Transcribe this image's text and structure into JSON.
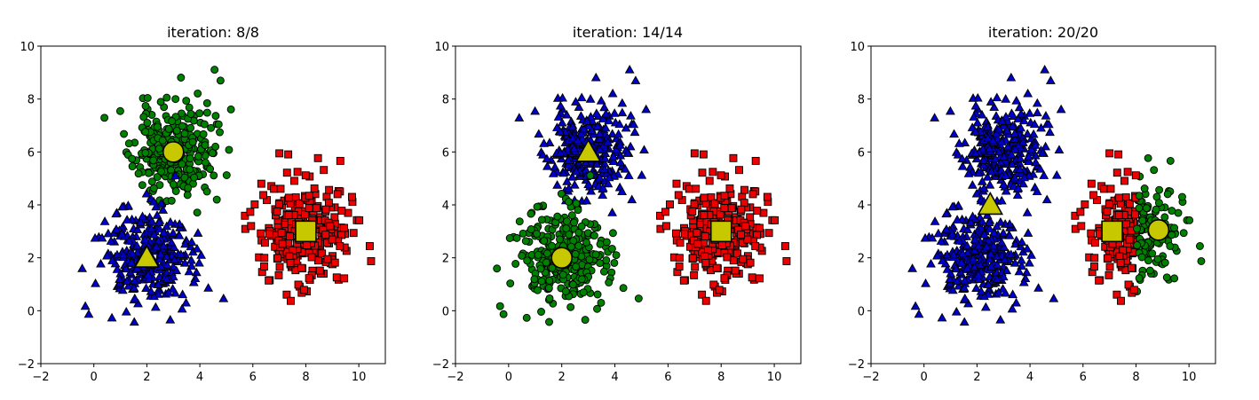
{
  "chart_data": [
    {
      "type": "scatter",
      "title": "iteration: 8/8",
      "xlim": [
        -2,
        11
      ],
      "ylim": [
        -2,
        10
      ],
      "xticks": [
        -2,
        0,
        2,
        4,
        6,
        8,
        10
      ],
      "yticks": [
        -2,
        0,
        2,
        4,
        6,
        8,
        10
      ],
      "grid": false,
      "clusters": [
        {
          "marker": "circle",
          "color": "#008000",
          "center": [
            3,
            6
          ],
          "spread": [
            0.75,
            0.9
          ],
          "n": 300,
          "seed": 11
        },
        {
          "marker": "triangle",
          "color": "#0000cc",
          "center": [
            2,
            2
          ],
          "spread": [
            0.85,
            0.95
          ],
          "n": 300,
          "seed": 23
        },
        {
          "marker": "square",
          "color": "#ee0000",
          "center": [
            8,
            3
          ],
          "spread": [
            0.85,
            0.95
          ],
          "n": 300,
          "seed": 37
        }
      ],
      "centroids": [
        {
          "marker": "circle",
          "x": 3.0,
          "y": 6.0,
          "color": "#c8c800"
        },
        {
          "marker": "triangle",
          "x": 2.0,
          "y": 2.0,
          "color": "#c8c800"
        },
        {
          "marker": "square",
          "x": 8.0,
          "y": 3.0,
          "color": "#c8c800"
        }
      ]
    },
    {
      "type": "scatter",
      "title": "iteration: 14/14",
      "xlim": [
        -2,
        11
      ],
      "ylim": [
        -2,
        10
      ],
      "xticks": [
        -2,
        0,
        2,
        4,
        6,
        8,
        10
      ],
      "yticks": [
        -2,
        0,
        2,
        4,
        6,
        8,
        10
      ],
      "grid": false,
      "clusters": [
        {
          "marker": "triangle",
          "color": "#0000cc",
          "center": [
            3,
            6
          ],
          "spread": [
            0.75,
            0.9
          ],
          "n": 300,
          "seed": 11
        },
        {
          "marker": "circle",
          "color": "#008000",
          "center": [
            2,
            2
          ],
          "spread": [
            0.85,
            0.95
          ],
          "n": 300,
          "seed": 23
        },
        {
          "marker": "square",
          "color": "#ee0000",
          "center": [
            8,
            3
          ],
          "spread": [
            0.85,
            0.95
          ],
          "n": 300,
          "seed": 37
        }
      ],
      "centroids": [
        {
          "marker": "triangle",
          "x": 3.0,
          "y": 6.0,
          "color": "#c8c800"
        },
        {
          "marker": "circle",
          "x": 2.0,
          "y": 2.0,
          "color": "#c8c800"
        },
        {
          "marker": "square",
          "x": 8.0,
          "y": 3.0,
          "color": "#c8c800"
        }
      ]
    },
    {
      "type": "scatter",
      "title": "iteration: 20/20",
      "xlim": [
        -2,
        11
      ],
      "ylim": [
        -2,
        10
      ],
      "xticks": [
        -2,
        0,
        2,
        4,
        6,
        8,
        10
      ],
      "yticks": [
        -2,
        0,
        2,
        4,
        6,
        8,
        10
      ],
      "grid": false,
      "clusters": [
        {
          "marker": "triangle",
          "color": "#0000cc",
          "center": [
            3,
            6
          ],
          "spread": [
            0.75,
            0.9
          ],
          "n": 300,
          "seed": 11
        },
        {
          "marker": "triangle",
          "color": "#0000cc",
          "center": [
            2,
            2
          ],
          "spread": [
            0.85,
            0.95
          ],
          "n": 300,
          "seed": 23
        },
        {
          "marker": "split",
          "color_left": "#ee0000",
          "color_right": "#008000",
          "split_x": 8.0,
          "center": [
            8,
            3
          ],
          "spread": [
            0.85,
            0.95
          ],
          "n": 300,
          "seed": 37
        }
      ],
      "centroids": [
        {
          "marker": "triangle",
          "x": 2.5,
          "y": 4.0,
          "color": "#c8c800"
        },
        {
          "marker": "square",
          "x": 7.1,
          "y": 3.0,
          "color": "#c8c800"
        },
        {
          "marker": "circle",
          "x": 8.85,
          "y": 3.05,
          "color": "#c8c800"
        }
      ]
    }
  ]
}
